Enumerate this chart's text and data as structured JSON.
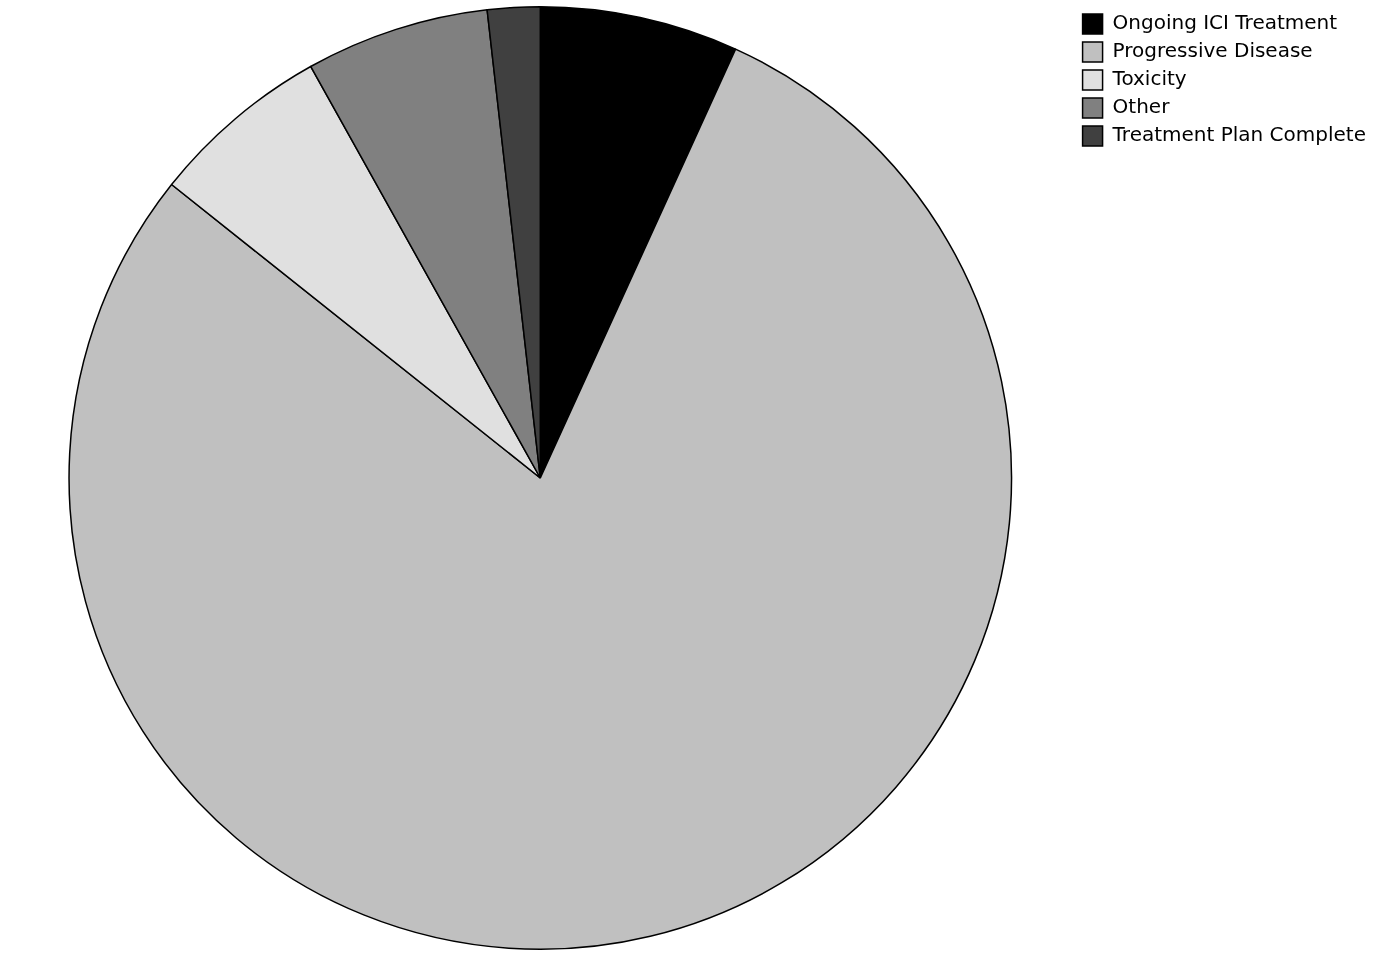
{
  "chart_data": {
    "type": "pie",
    "categories": [
      "Ongoing ICI Treatment",
      "Progressive Disease",
      "Toxicity",
      "Other",
      "Treatment Plan Complete"
    ],
    "values": [
      6.8,
      78.9,
      6.2,
      6.3,
      1.8
    ],
    "colors": [
      "#000000",
      "#c0c0c0",
      "#e0e0e0",
      "#808080",
      "#404040"
    ],
    "legend": "top right"
  }
}
